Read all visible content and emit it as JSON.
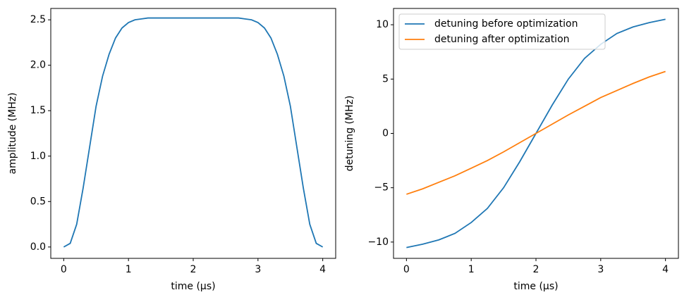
{
  "chart_data": [
    {
      "type": "line",
      "xlabel": "time (μs)",
      "ylabel": "amplitude (MHz)",
      "x": [
        0,
        0.1,
        0.2,
        0.3,
        0.4,
        0.5,
        0.6,
        0.7,
        0.8,
        0.9,
        1.0,
        1.1,
        1.2,
        1.3,
        1.5,
        2.0,
        2.5,
        2.7,
        2.8,
        2.9,
        3.0,
        3.1,
        3.2,
        3.3,
        3.4,
        3.5,
        3.6,
        3.7,
        3.8,
        3.9,
        4.0
      ],
      "values": [
        0,
        0.04,
        0.25,
        0.65,
        1.1,
        1.55,
        1.88,
        2.12,
        2.3,
        2.41,
        2.47,
        2.5,
        2.51,
        2.52,
        2.52,
        2.52,
        2.52,
        2.52,
        2.51,
        2.5,
        2.47,
        2.41,
        2.3,
        2.12,
        1.88,
        1.55,
        1.1,
        0.65,
        0.25,
        0.04,
        0
      ],
      "color": "#1f77b4",
      "xlim": [
        -0.2,
        4.2
      ],
      "xticks": [
        0,
        1,
        2,
        3,
        4
      ],
      "ylim": [
        -0.125,
        2.625
      ],
      "yticks": [
        {
          "value": 0,
          "label": "0.0"
        },
        {
          "value": 0.5,
          "label": "0.5"
        },
        {
          "value": 1.0,
          "label": "1.0"
        },
        {
          "value": 1.5,
          "label": "1.5"
        },
        {
          "value": 2.0,
          "label": "2.0"
        },
        {
          "value": 2.5,
          "label": "2.5"
        }
      ]
    },
    {
      "type": "line",
      "xlabel": "time (μs)",
      "ylabel": "detuning (MHz)",
      "x": [
        0,
        0.25,
        0.5,
        0.75,
        1,
        1.25,
        1.5,
        1.75,
        2,
        2.25,
        2.5,
        2.75,
        3,
        3.25,
        3.5,
        3.75,
        4
      ],
      "series": [
        {
          "name": "detuning before optimization",
          "color": "#1f77b4",
          "values": [
            -10.5,
            -10.2,
            -9.8,
            -9.2,
            -8.2,
            -6.9,
            -5.0,
            -2.6,
            0,
            2.6,
            5.0,
            6.9,
            8.2,
            9.2,
            9.8,
            10.2,
            10.5
          ]
        },
        {
          "name": "detuning after optimization",
          "color": "#ff7f0e",
          "values": [
            -5.6,
            -5.1,
            -4.5,
            -3.9,
            -3.2,
            -2.5,
            -1.7,
            -0.85,
            0,
            0.85,
            1.7,
            2.5,
            3.3,
            3.95,
            4.6,
            5.2,
            5.7
          ]
        }
      ],
      "legend": "upper left",
      "xlim": [
        -0.2,
        4.2
      ],
      "xticks": [
        0,
        1,
        2,
        3,
        4
      ],
      "ylim": [
        -11.5,
        11.5
      ],
      "yticks": [
        {
          "value": -10,
          "label": "−10"
        },
        {
          "value": -5,
          "label": "−5"
        },
        0,
        5,
        10
      ]
    }
  ]
}
